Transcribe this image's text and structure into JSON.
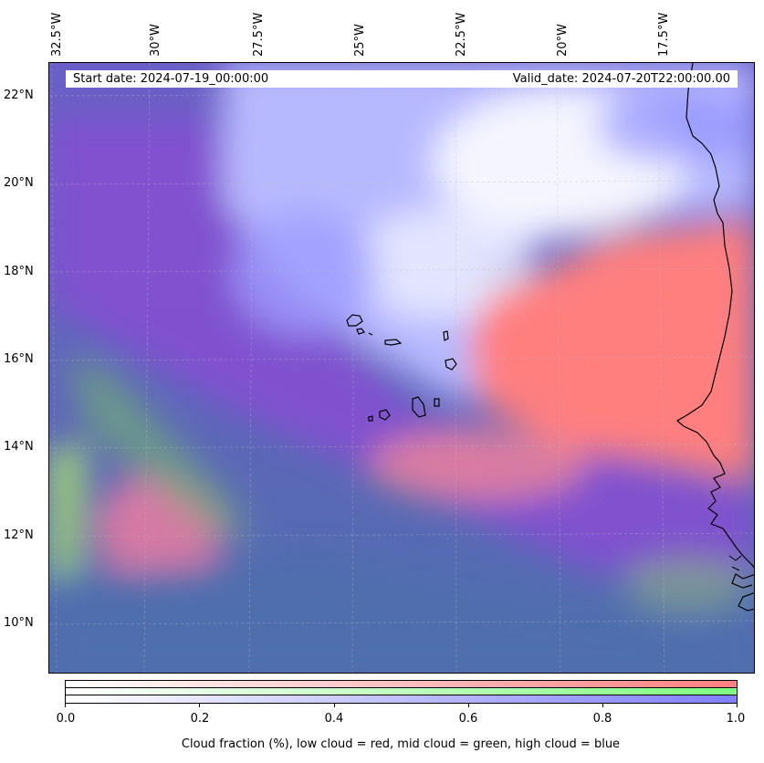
{
  "map": {
    "start_date": "Start date: 2024-07-19_00:00:00",
    "valid_date": "Valid_date: 2024-07-20T22:00:00.00",
    "lon_labels": [
      "32.5°W",
      "30°W",
      "27.5°W",
      "25°W",
      "22.5°W",
      "20°W",
      "17.5°W"
    ],
    "lat_labels": [
      "22°N",
      "20°N",
      "18°N",
      "16°N",
      "14°N",
      "12°N",
      "10°N"
    ],
    "coastline_color": "#000000",
    "gridlines": true,
    "colors": {
      "low_cloud": "#ff7f7f",
      "mid_cloud": "#7fff7f",
      "high_cloud": "#7f7fff",
      "mixed_low_high": "#8a4fcf",
      "clear_low_high": "#4f6fae"
    }
  },
  "colorbar": {
    "ticks": [
      "0.0",
      "0.2",
      "0.4",
      "0.6",
      "0.8",
      "1.0"
    ],
    "caption": "Cloud fraction (%), low cloud = red, mid cloud = green, high cloud = blue"
  }
}
